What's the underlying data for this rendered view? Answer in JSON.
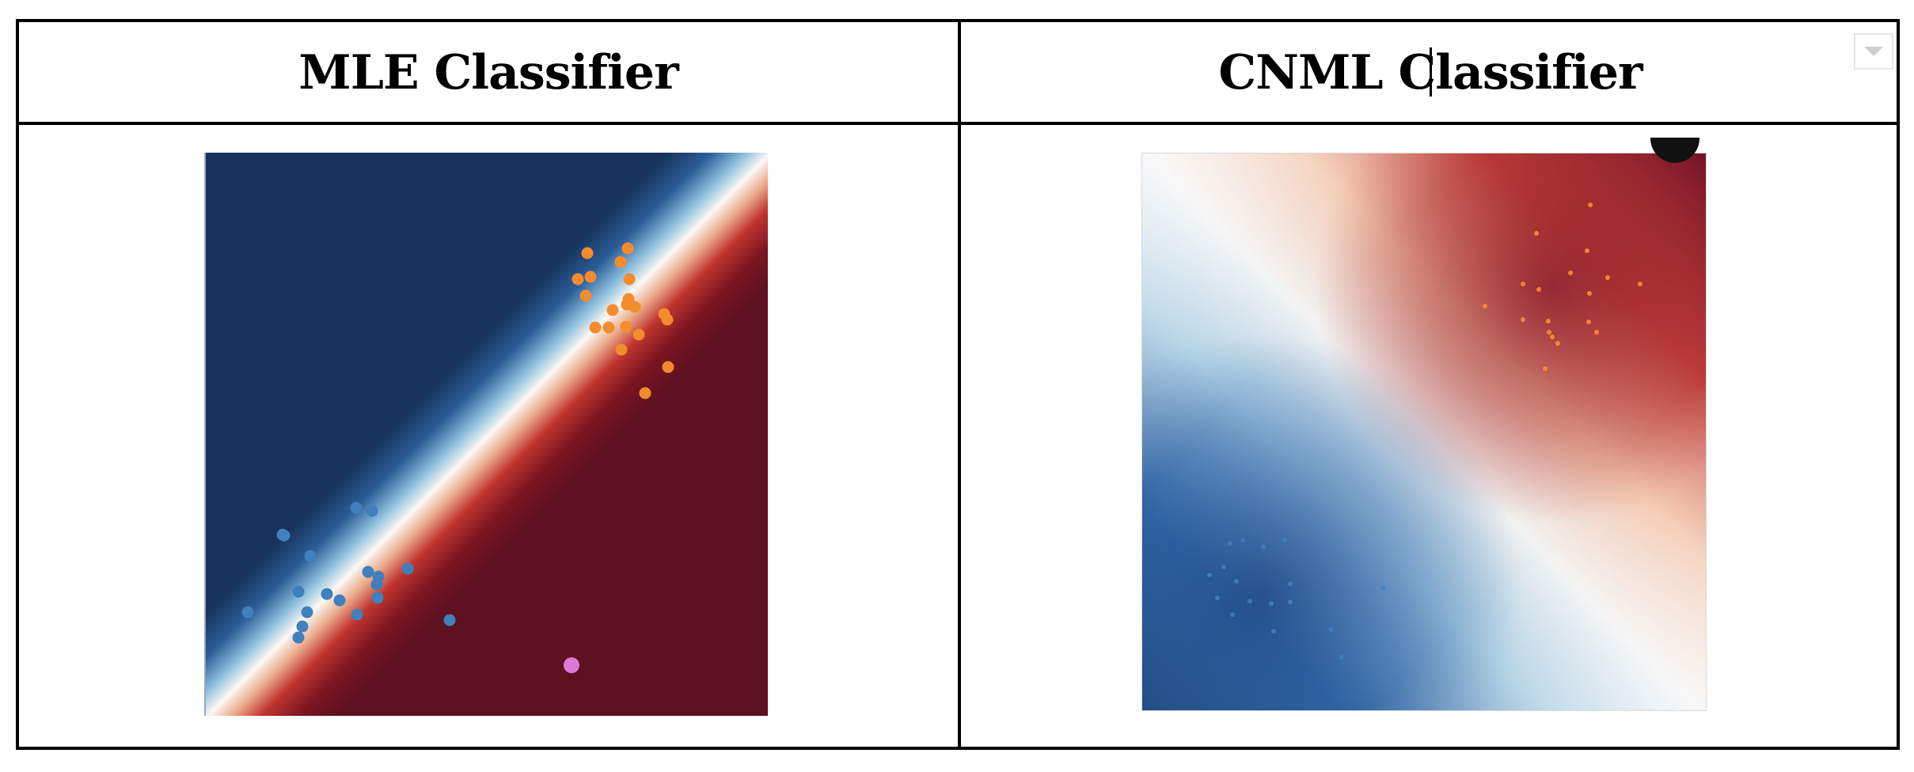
{
  "table": {
    "headers": [
      "MLE Classifier",
      "CNML Classifier"
    ]
  },
  "icons": {
    "column_menu": "chevron-down-icon"
  },
  "colors": {
    "mle_background_class_0": "#17325c",
    "mle_background_class_1": "#5e1121",
    "class_0_points": "#3f80bd",
    "class_1_points": "#f48b2d",
    "test_point": "#dd78d8",
    "cnml_low": "#1b3d6e",
    "cnml_mid": "#f2f2f2",
    "cnml_high": "#6b0f24"
  }
}
